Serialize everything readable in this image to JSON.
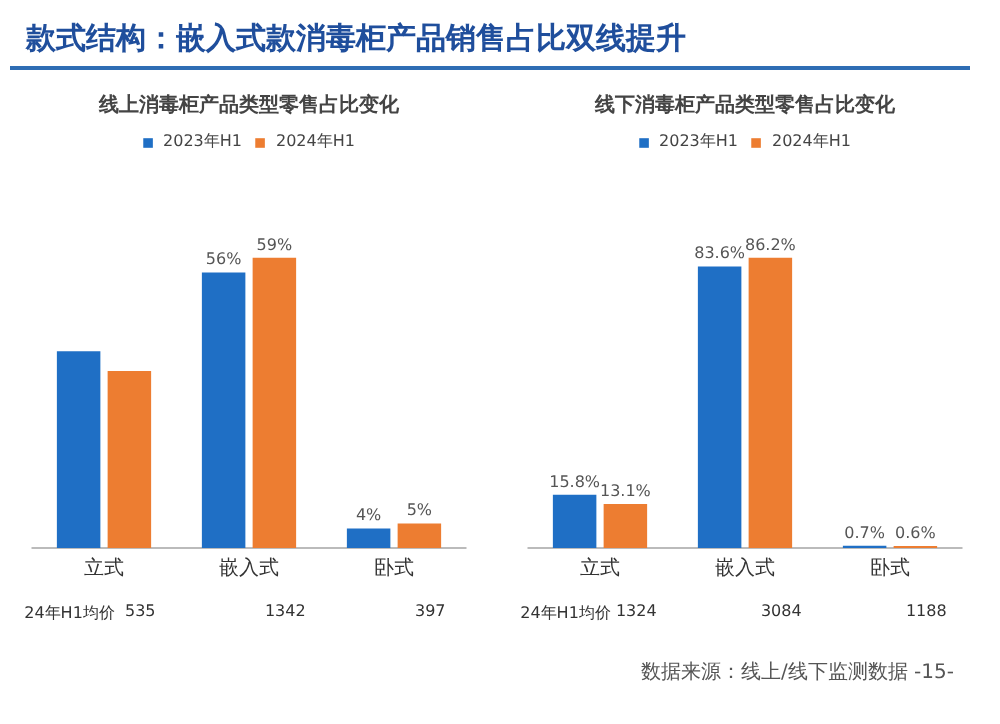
{
  "chart_data": [
    {
      "type": "other",
      "title": "款式结构：嵌入式款消毒柜产品销售占比双线提升",
      "annotations": [
        "数据来源：线上/线下监测数据",
        "-15-"
      ]
    },
    {
      "type": "bar",
      "title": "线上消毒柜产品类型零售占比变化",
      "categories": [
        "立式",
        "嵌入式",
        "卧式"
      ],
      "legend": "top",
      "tick_labels": "x",
      "grid": false,
      "series": [
        {
          "name": "2023年H1",
          "color": "#1f6fc5",
          "values": [
            40,
            56,
            4
          ],
          "value_labels": [
            null,
            "56%",
            "4%"
          ]
        },
        {
          "name": "2024年H1",
          "color": "#ed7d31",
          "values": [
            36,
            59,
            5
          ],
          "value_labels": [
            null,
            "59%",
            "5%"
          ]
        }
      ],
      "annotations": [
        "24年H1均价",
        "535",
        "1342",
        "397"
      ]
    },
    {
      "type": "bar",
      "title": "线下消毒柜产品类型零售占比变化",
      "categories": [
        "立式",
        "嵌入式",
        "卧式"
      ],
      "legend": "top",
      "tick_labels": "x",
      "grid": false,
      "series": [
        {
          "name": "2023年H1",
          "color": "#1f6fc5",
          "values": [
            15.8,
            83.6,
            0.7
          ],
          "value_labels": [
            "15.8%",
            "83.6%",
            "0.7%"
          ]
        },
        {
          "name": "2024年H1",
          "color": "#ed7d31",
          "values": [
            13.1,
            86.2,
            0.6
          ],
          "value_labels": [
            "13.1%",
            "86.2%",
            "0.6%"
          ]
        }
      ],
      "annotations": [
        "24年H1均价",
        "1324",
        "3084",
        "1188"
      ]
    }
  ]
}
